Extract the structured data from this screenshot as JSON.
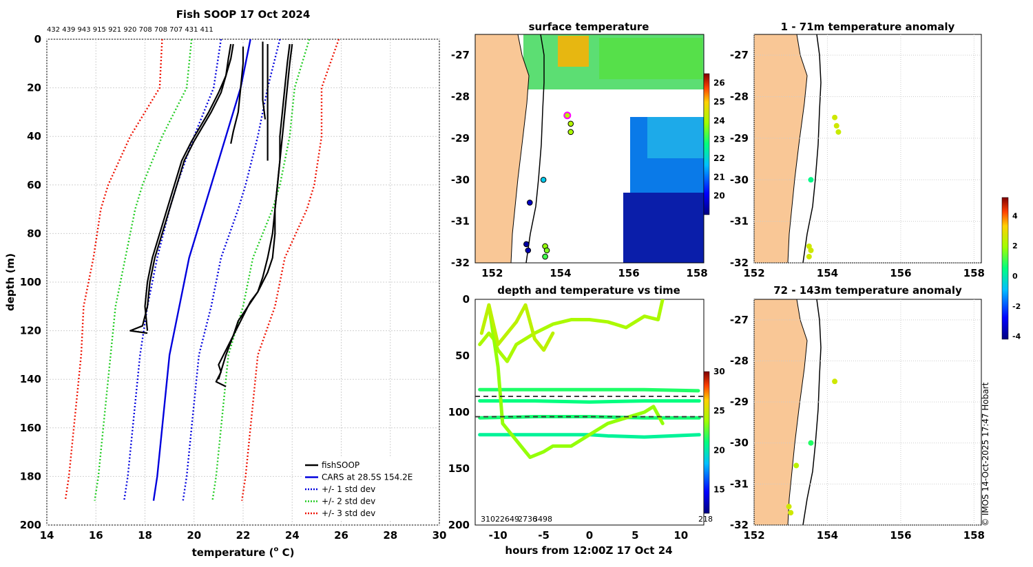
{
  "chart_data": [
    {
      "type": "line",
      "id": "profile",
      "title": "Fish SOOP 17 Oct 2024",
      "station_ids": "432 439 943 915 921 920 708 708 707 431 411",
      "xlabel": "temperature (°C)",
      "xlabel_main": "temperature (",
      "xlabel_sup": "o",
      "xlabel_end": " C)",
      "ylabel": "depth (m)",
      "xlim": [
        14,
        30
      ],
      "ylim": [
        200,
        0
      ],
      "xticks": [
        "14",
        "16",
        "18",
        "20",
        "22",
        "24",
        "26",
        "28",
        "30"
      ],
      "yticks": [
        "0",
        "20",
        "40",
        "60",
        "80",
        "100",
        "120",
        "140",
        "160",
        "180",
        "200"
      ],
      "legend": [
        {
          "label": "fishSOOP",
          "color": "#000000",
          "style": "solid"
        },
        {
          "label": "CARS at 28.5S 154.2E",
          "color": "#0000dd",
          "style": "solid"
        },
        {
          "label": "+/- 1 std dev",
          "color": "#0000dd",
          "style": "dotted"
        },
        {
          "label": "+/- 2 std dev",
          "color": "#22cc22",
          "style": "dotted"
        },
        {
          "label": "+/- 3 std dev",
          "color": "#ee1100",
          "style": "dotted"
        }
      ],
      "climatology": {
        "depth": [
          0,
          10,
          20,
          30,
          40,
          50,
          60,
          70,
          80,
          90,
          100,
          110,
          120,
          130,
          140,
          150,
          160,
          170,
          180,
          190
        ],
        "mean": [
          22.3,
          22.1,
          21.9,
          21.6,
          21.3,
          21.0,
          20.7,
          20.4,
          20.1,
          19.8,
          19.6,
          19.4,
          19.2,
          19.0,
          18.9,
          18.8,
          18.7,
          18.6,
          18.5,
          18.35
        ],
        "std": [
          1.2,
          1.15,
          1.1,
          1.2,
          1.3,
          1.35,
          1.4,
          1.4,
          1.35,
          1.3,
          1.3,
          1.3,
          1.25,
          1.2,
          1.2,
          1.2,
          1.2,
          1.2,
          1.2,
          1.2
        ]
      },
      "profiles": [
        {
          "name": "cast-a",
          "t": [
            21.5,
            21.4,
            21.3,
            21.0,
            20.6,
            19.9,
            19.5,
            19.2,
            18.9,
            18.6,
            18.3,
            18.1,
            18.0,
            18.1
          ],
          "d": [
            2,
            8,
            15,
            22,
            30,
            42,
            50,
            60,
            70,
            80,
            90,
            100,
            110,
            120
          ]
        },
        {
          "name": "cast-b",
          "t": [
            21.6,
            21.5,
            21.3,
            21.1,
            20.7,
            20.0,
            19.6,
            19.3,
            19.0,
            18.7,
            18.4,
            18.2,
            18.1,
            17.9,
            17.4,
            18.1
          ],
          "d": [
            2,
            8,
            15,
            22,
            30,
            42,
            50,
            60,
            70,
            80,
            90,
            100,
            110,
            118,
            120,
            121
          ]
        },
        {
          "name": "cast-c",
          "t": [
            22.0,
            22.0,
            21.9,
            21.8,
            21.6,
            21.5
          ],
          "d": [
            3,
            10,
            20,
            30,
            38,
            43
          ]
        },
        {
          "name": "cast-d",
          "t": [
            22.8,
            22.8,
            22.8,
            22.8,
            22.9
          ],
          "d": [
            1,
            10,
            20,
            25,
            33
          ]
        },
        {
          "name": "cast-e",
          "t": [
            23.0,
            23.0,
            23.0,
            23.0
          ],
          "d": [
            2,
            15,
            30,
            50
          ]
        },
        {
          "name": "cast-f",
          "t": [
            23.9,
            23.8,
            23.7,
            23.6,
            23.5,
            23.5,
            23.4,
            23.3,
            23.3,
            23.2,
            23.0,
            22.8,
            22.6,
            22.3,
            22.2,
            22.1,
            21.9,
            21.6,
            21.4,
            21.2,
            21.0,
            21.1,
            21.0,
            20.9,
            21.3
          ],
          "d": [
            2,
            10,
            20,
            30,
            40,
            50,
            60,
            70,
            80,
            90,
            96,
            100,
            104,
            108,
            110,
            112,
            116,
            122,
            126,
            130,
            134,
            137,
            139,
            141,
            143
          ]
        },
        {
          "name": "cast-g",
          "t": [
            24.0,
            23.9,
            23.8,
            23.7,
            23.6,
            23.5,
            23.4,
            23.3,
            23.2,
            23.0,
            22.8,
            22.6,
            22.2,
            21.8,
            21.6,
            21.3,
            21.0
          ],
          "d": [
            2,
            10,
            20,
            30,
            40,
            50,
            60,
            70,
            80,
            90,
            98,
            104,
            110,
            116,
            122,
            130,
            140
          ]
        }
      ]
    },
    {
      "type": "heatmap",
      "id": "surface-map",
      "title": "surface temperature",
      "xlim": [
        151.5,
        158.2
      ],
      "ylim": [
        -32,
        -26.5
      ],
      "xticks": [
        "152",
        "154",
        "156",
        "158"
      ],
      "yticks": [
        "-27",
        "-28",
        "-29",
        "-30",
        "-31",
        "-32"
      ],
      "colorbar": {
        "min": 19,
        "max": 26.5,
        "ticks": [
          "20",
          "21",
          "22",
          "23",
          "24",
          "25",
          "26"
        ]
      },
      "points": [
        {
          "lon": 154.2,
          "lat": -28.45,
          "value": 24.2,
          "highlight": true
        },
        {
          "lon": 154.3,
          "lat": -28.65,
          "value": 24.1
        },
        {
          "lon": 154.3,
          "lat": -28.85,
          "value": 24.0
        },
        {
          "lon": 153.5,
          "lat": -30.0,
          "value": 21.8
        },
        {
          "lon": 153.1,
          "lat": -30.55,
          "value": 19.6
        },
        {
          "lon": 153.0,
          "lat": -31.55,
          "value": 19.3
        },
        {
          "lon": 153.05,
          "lat": -31.7,
          "value": 19.4
        },
        {
          "lon": 153.55,
          "lat": -31.6,
          "value": 23.8
        },
        {
          "lon": 153.6,
          "lat": -31.7,
          "value": 23.6
        },
        {
          "lon": 153.55,
          "lat": -31.85,
          "value": 23.2
        }
      ]
    },
    {
      "type": "scatter",
      "id": "anomaly-shallow",
      "title": "1 - 71m temperature anomaly",
      "xlim": [
        152,
        158.2
      ],
      "ylim": [
        -32,
        -26.5
      ],
      "xticks": [
        "152",
        "154",
        "156",
        "158"
      ],
      "yticks": [
        "-27",
        "-28",
        "-29",
        "-30",
        "-31",
        "-32"
      ],
      "points": [
        {
          "lon": 154.2,
          "lat": -28.5,
          "value": 2.6
        },
        {
          "lon": 154.25,
          "lat": -28.7,
          "value": 2.6
        },
        {
          "lon": 154.3,
          "lat": -28.85,
          "value": 2.5
        },
        {
          "lon": 153.55,
          "lat": -30.0,
          "value": 0.4
        },
        {
          "lon": 153.5,
          "lat": -31.6,
          "value": 2.6
        },
        {
          "lon": 153.55,
          "lat": -31.7,
          "value": 2.6
        },
        {
          "lon": 153.5,
          "lat": -31.85,
          "value": 2.6
        }
      ]
    },
    {
      "type": "scatter",
      "id": "anomaly-deep",
      "title": "72 - 143m temperature anomaly",
      "xlim": [
        152,
        158.2
      ],
      "ylim": [
        -32,
        -26.5
      ],
      "xticks": [
        "152",
        "154",
        "156",
        "158"
      ],
      "yticks": [
        "-27",
        "-28",
        "-29",
        "-30",
        "-31",
        "-32"
      ],
      "colorbar": {
        "min": -4.2,
        "max": 5.2,
        "ticks": [
          "4",
          "2",
          "0",
          "-2",
          "-4"
        ]
      },
      "points": [
        {
          "lon": 154.2,
          "lat": -28.5,
          "value": 2.6
        },
        {
          "lon": 153.55,
          "lat": -30.0,
          "value": 0.8
        },
        {
          "lon": 153.15,
          "lat": -30.55,
          "value": 2.3
        },
        {
          "lon": 152.95,
          "lat": -31.55,
          "value": 2.6
        },
        {
          "lon": 153.0,
          "lat": -31.7,
          "value": 2.6
        }
      ]
    },
    {
      "type": "line",
      "id": "depth-time",
      "title": "depth and temperature vs time",
      "xlabel": "hours from 12:00Z 17 Oct 24",
      "xlim": [
        -12.5,
        12.5
      ],
      "ylim": [
        200,
        0
      ],
      "xticks": [
        "-10",
        "-5",
        "0",
        "5",
        "10"
      ],
      "yticks": [
        "0",
        "50",
        "100",
        "150",
        "200"
      ],
      "dashed_lines": [
        86,
        104
      ],
      "colorbar": {
        "min": 12,
        "max": 30,
        "ticks": [
          "30",
          "25",
          "20",
          "15"
        ]
      },
      "bottom_labels": {
        "left": "3102",
        "mid": "2649",
        "mid2": "2736",
        "right_a": "3498",
        "right_b": "218"
      },
      "tracks": [
        {
          "name": "track-1",
          "temp": 21.5,
          "t": [
            -12,
            -6,
            0,
            6,
            11.9
          ],
          "d": [
            80,
            80,
            80,
            80,
            81
          ]
        },
        {
          "name": "track-2",
          "temp": 21.0,
          "t": [
            -12,
            -6,
            0,
            6,
            12
          ],
          "d": [
            90,
            90,
            91,
            90,
            90
          ]
        },
        {
          "name": "track-3",
          "temp": 21.3,
          "t": [
            -12,
            -6,
            0,
            6,
            12
          ],
          "d": [
            105,
            104,
            104,
            105,
            105
          ]
        },
        {
          "name": "track-4",
          "temp": 20.5,
          "t": [
            -12,
            -6,
            0,
            2,
            6,
            12
          ],
          "d": [
            120,
            120,
            120,
            121,
            122,
            120
          ]
        },
        {
          "name": "track-5",
          "temp": 24.0,
          "t": [
            -12,
            -11,
            -10.5,
            -10,
            -9,
            -8,
            -6,
            -4,
            -2,
            0,
            2,
            4,
            6,
            7.5,
            8
          ],
          "d": [
            40,
            30,
            35,
            45,
            55,
            40,
            30,
            22,
            18,
            18,
            20,
            25,
            15,
            18,
            0
          ]
        },
        {
          "name": "track-6",
          "temp": 23.5,
          "t": [
            -11,
            -10,
            -9.5,
            -8,
            -6.5,
            -5,
            -4,
            -2,
            0,
            2,
            4,
            6,
            7,
            8
          ],
          "d": [
            5,
            60,
            110,
            125,
            140,
            135,
            130,
            130,
            120,
            110,
            105,
            100,
            95,
            110
          ]
        },
        {
          "name": "track-7",
          "temp": 24.5,
          "t": [
            -11.8,
            -11,
            -10,
            -9,
            -8,
            -7,
            -6,
            -5,
            -4
          ],
          "d": [
            30,
            5,
            40,
            30,
            20,
            5,
            35,
            45,
            30
          ]
        }
      ]
    }
  ],
  "credit": "© IMOS 14-Oct-2025 17:47 Hobart"
}
